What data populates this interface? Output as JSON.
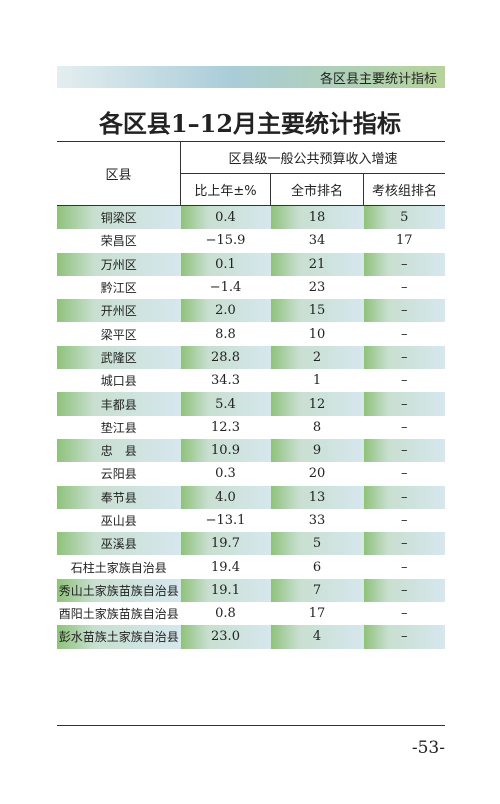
{
  "header": {
    "section": "各区县主要统计指标"
  },
  "title": "各区县1–12月主要统计指标",
  "table": {
    "columns": {
      "district": "区县",
      "group": "区县级一般公共预算收入增速",
      "sub": [
        "比上年±%",
        "全市排名",
        "考核组排名"
      ]
    },
    "rows": [
      [
        "铜梁区",
        "0.4",
        "18",
        "5"
      ],
      [
        "荣昌区",
        "−15.9",
        "34",
        "17"
      ],
      [
        "万州区",
        "0.1",
        "21",
        "–"
      ],
      [
        "黔江区",
        "−1.4",
        "23",
        "–"
      ],
      [
        "开州区",
        "2.0",
        "15",
        "–"
      ],
      [
        "梁平区",
        "8.8",
        "10",
        "–"
      ],
      [
        "武隆区",
        "28.8",
        "2",
        "–"
      ],
      [
        "城口县",
        "34.3",
        "1",
        "–"
      ],
      [
        "丰都县",
        "5.4",
        "12",
        "–"
      ],
      [
        "垫江县",
        "12.3",
        "8",
        "–"
      ],
      [
        "忠　县",
        "10.9",
        "9",
        "–"
      ],
      [
        "云阳县",
        "0.3",
        "20",
        "–"
      ],
      [
        "奉节县",
        "4.0",
        "13",
        "–"
      ],
      [
        "巫山县",
        "−13.1",
        "33",
        "–"
      ],
      [
        "巫溪县",
        "19.7",
        "5",
        "–"
      ],
      [
        "石柱土家族自治县",
        "19.4",
        "6",
        "–"
      ],
      [
        "秀山土家族苗族自治县",
        "19.1",
        "7",
        "–"
      ],
      [
        "酉阳土家族苗族自治县",
        "0.8",
        "17",
        "–"
      ],
      [
        "彭水苗族土家族自治县",
        "23.0",
        "4",
        "–"
      ]
    ]
  },
  "footer": {
    "page": "-53-"
  }
}
